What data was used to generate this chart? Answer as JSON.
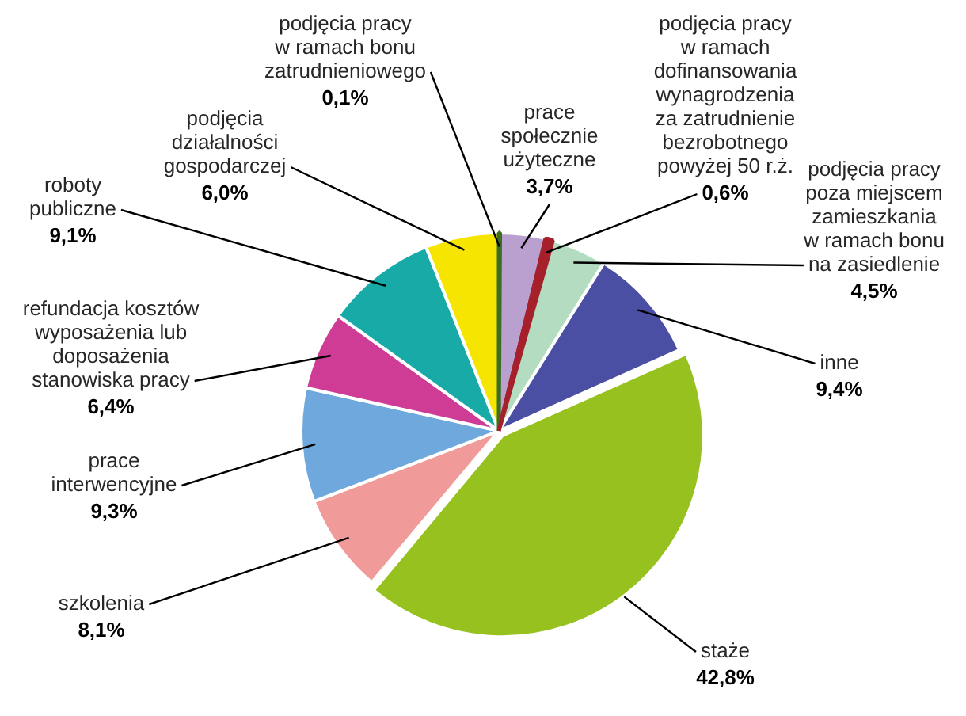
{
  "chart_data": {
    "type": "pie",
    "categories": [
      "podjęcia pracy w ramach bonu zatrudnieniowego",
      "prace społecznie użyteczne",
      "podjęcia pracy w ramach dofinansowania wynagrodzenia za zatrudnienie bezrobotnego powyżej 50 r.ż.",
      "podjęcia pracy poza miejscem zamieszkania w ramach bonu na zasiedlenie",
      "inne",
      "staże",
      "szkolenia",
      "prace interwencyjne",
      "refundacja kosztów wyposażenia lub doposażenia stanowiska pracy",
      "roboty publiczne",
      "podjęcia działalności gospodarczej"
    ],
    "values": [
      0.1,
      3.7,
      0.6,
      4.5,
      9.4,
      42.8,
      8.1,
      9.3,
      6.4,
      9.1,
      6.0
    ],
    "colors": [
      "#3b6e23",
      "#b9a0cf",
      "#a5202a",
      "#b3dcc0",
      "#4a4fa3",
      "#96c11f",
      "#f09a9a",
      "#6fa8dc",
      "#cf3c96",
      "#17aaa6",
      "#f5e500"
    ],
    "value_labels": [
      "0,1%",
      "3,7%",
      "0,6%",
      "4,5%",
      "9,4%",
      "42,8%",
      "8,1%",
      "9,3%",
      "6,4%",
      "9,1%",
      "6,0%"
    ]
  }
}
